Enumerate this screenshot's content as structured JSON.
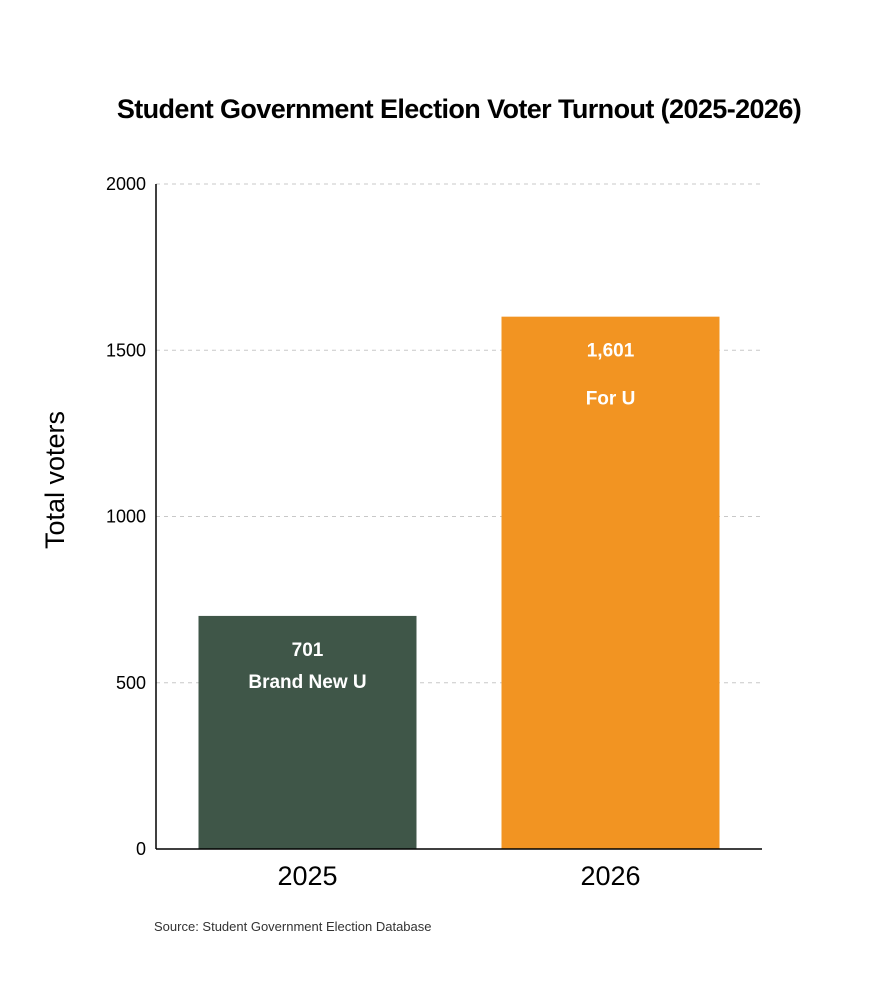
{
  "chart_data": {
    "type": "bar",
    "title": "Student Government Election Voter Turnout (2025-2026)",
    "xlabel": "",
    "ylabel": "Total voters",
    "categories": [
      "2025",
      "2026"
    ],
    "values": [
      701,
      1601
    ],
    "value_labels": [
      "701",
      "1,601"
    ],
    "bar_names": [
      "Brand New U",
      "For U"
    ],
    "colors": [
      "#3f5648",
      "#f29422"
    ],
    "ylim": [
      0,
      2000
    ],
    "yticks": [
      0,
      500,
      1000,
      1500,
      2000
    ],
    "grid": true,
    "source": "Source: Student Government Election Database"
  }
}
